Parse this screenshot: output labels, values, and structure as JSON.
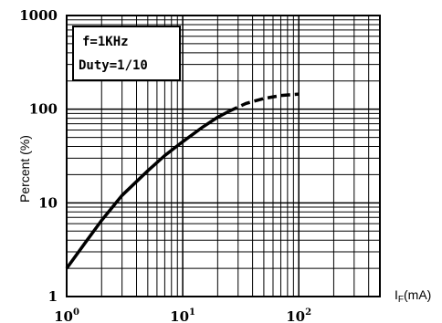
{
  "chart_data": {
    "type": "line",
    "title": "",
    "xlabel": "IF(mA)",
    "ylabel": "Percent (%)",
    "xscale": "log",
    "yscale": "log",
    "xlim": [
      1,
      500
    ],
    "ylim": [
      1,
      1000
    ],
    "grid": true,
    "x_tick_labels": [
      {
        "base": "10",
        "exp": "0"
      },
      {
        "base": "10",
        "exp": "1"
      },
      {
        "base": "10",
        "exp": "2"
      }
    ],
    "y_tick_labels": [
      "1",
      "10",
      "100",
      "1000"
    ],
    "legend": {
      "placement": "top-left",
      "lines": [
        "f=1KHz",
        "Duty=1/10"
      ]
    },
    "series": [
      {
        "style": "solid",
        "x": [
          1,
          1.5,
          2,
          3,
          5,
          7,
          10,
          15,
          20,
          25
        ],
        "y": [
          2,
          4,
          6.5,
          12,
          22,
          32,
          45,
          65,
          82,
          95
        ]
      },
      {
        "style": "dashed",
        "x": [
          25,
          35,
          50,
          70,
          100
        ],
        "y": [
          95,
          115,
          130,
          140,
          145
        ]
      }
    ]
  }
}
